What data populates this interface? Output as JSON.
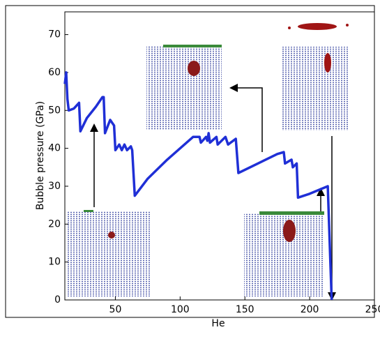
{
  "chart_data": {
    "type": "line",
    "xlabel": "He",
    "ylabel": "Bubble pressure (GPa)",
    "x": [
      11,
      12,
      13,
      14,
      18,
      22,
      23,
      28,
      35,
      40,
      41,
      42,
      46,
      49,
      50,
      53,
      55,
      57,
      59,
      62,
      63,
      65,
      75,
      90,
      110,
      115,
      116,
      120,
      121,
      122,
      123,
      128,
      129,
      135,
      137,
      143,
      145,
      160,
      175,
      180,
      181,
      186,
      187,
      190,
      191,
      200,
      214,
      216,
      217
    ],
    "values": [
      57,
      60,
      53,
      50,
      50.5,
      52,
      44.5,
      48,
      51,
      53.5,
      53.5,
      44,
      47.5,
      46,
      39.5,
      41,
      39.5,
      41,
      39.5,
      40.5,
      39.5,
      27.5,
      32,
      37,
      43,
      43,
      41.5,
      43,
      42,
      44,
      41.5,
      43,
      41,
      43,
      41,
      42.5,
      33.5,
      36,
      38.5,
      39,
      36,
      37,
      35,
      36,
      27,
      28,
      30,
      10,
      0
    ],
    "color": "#1f2fd6",
    "xlim": [
      11,
      250
    ],
    "ylim": [
      0,
      76
    ],
    "xticks": [
      50,
      100,
      150,
      200,
      250
    ],
    "yticks": [
      0,
      10,
      20,
      30,
      40,
      50,
      60,
      70
    ]
  }
}
